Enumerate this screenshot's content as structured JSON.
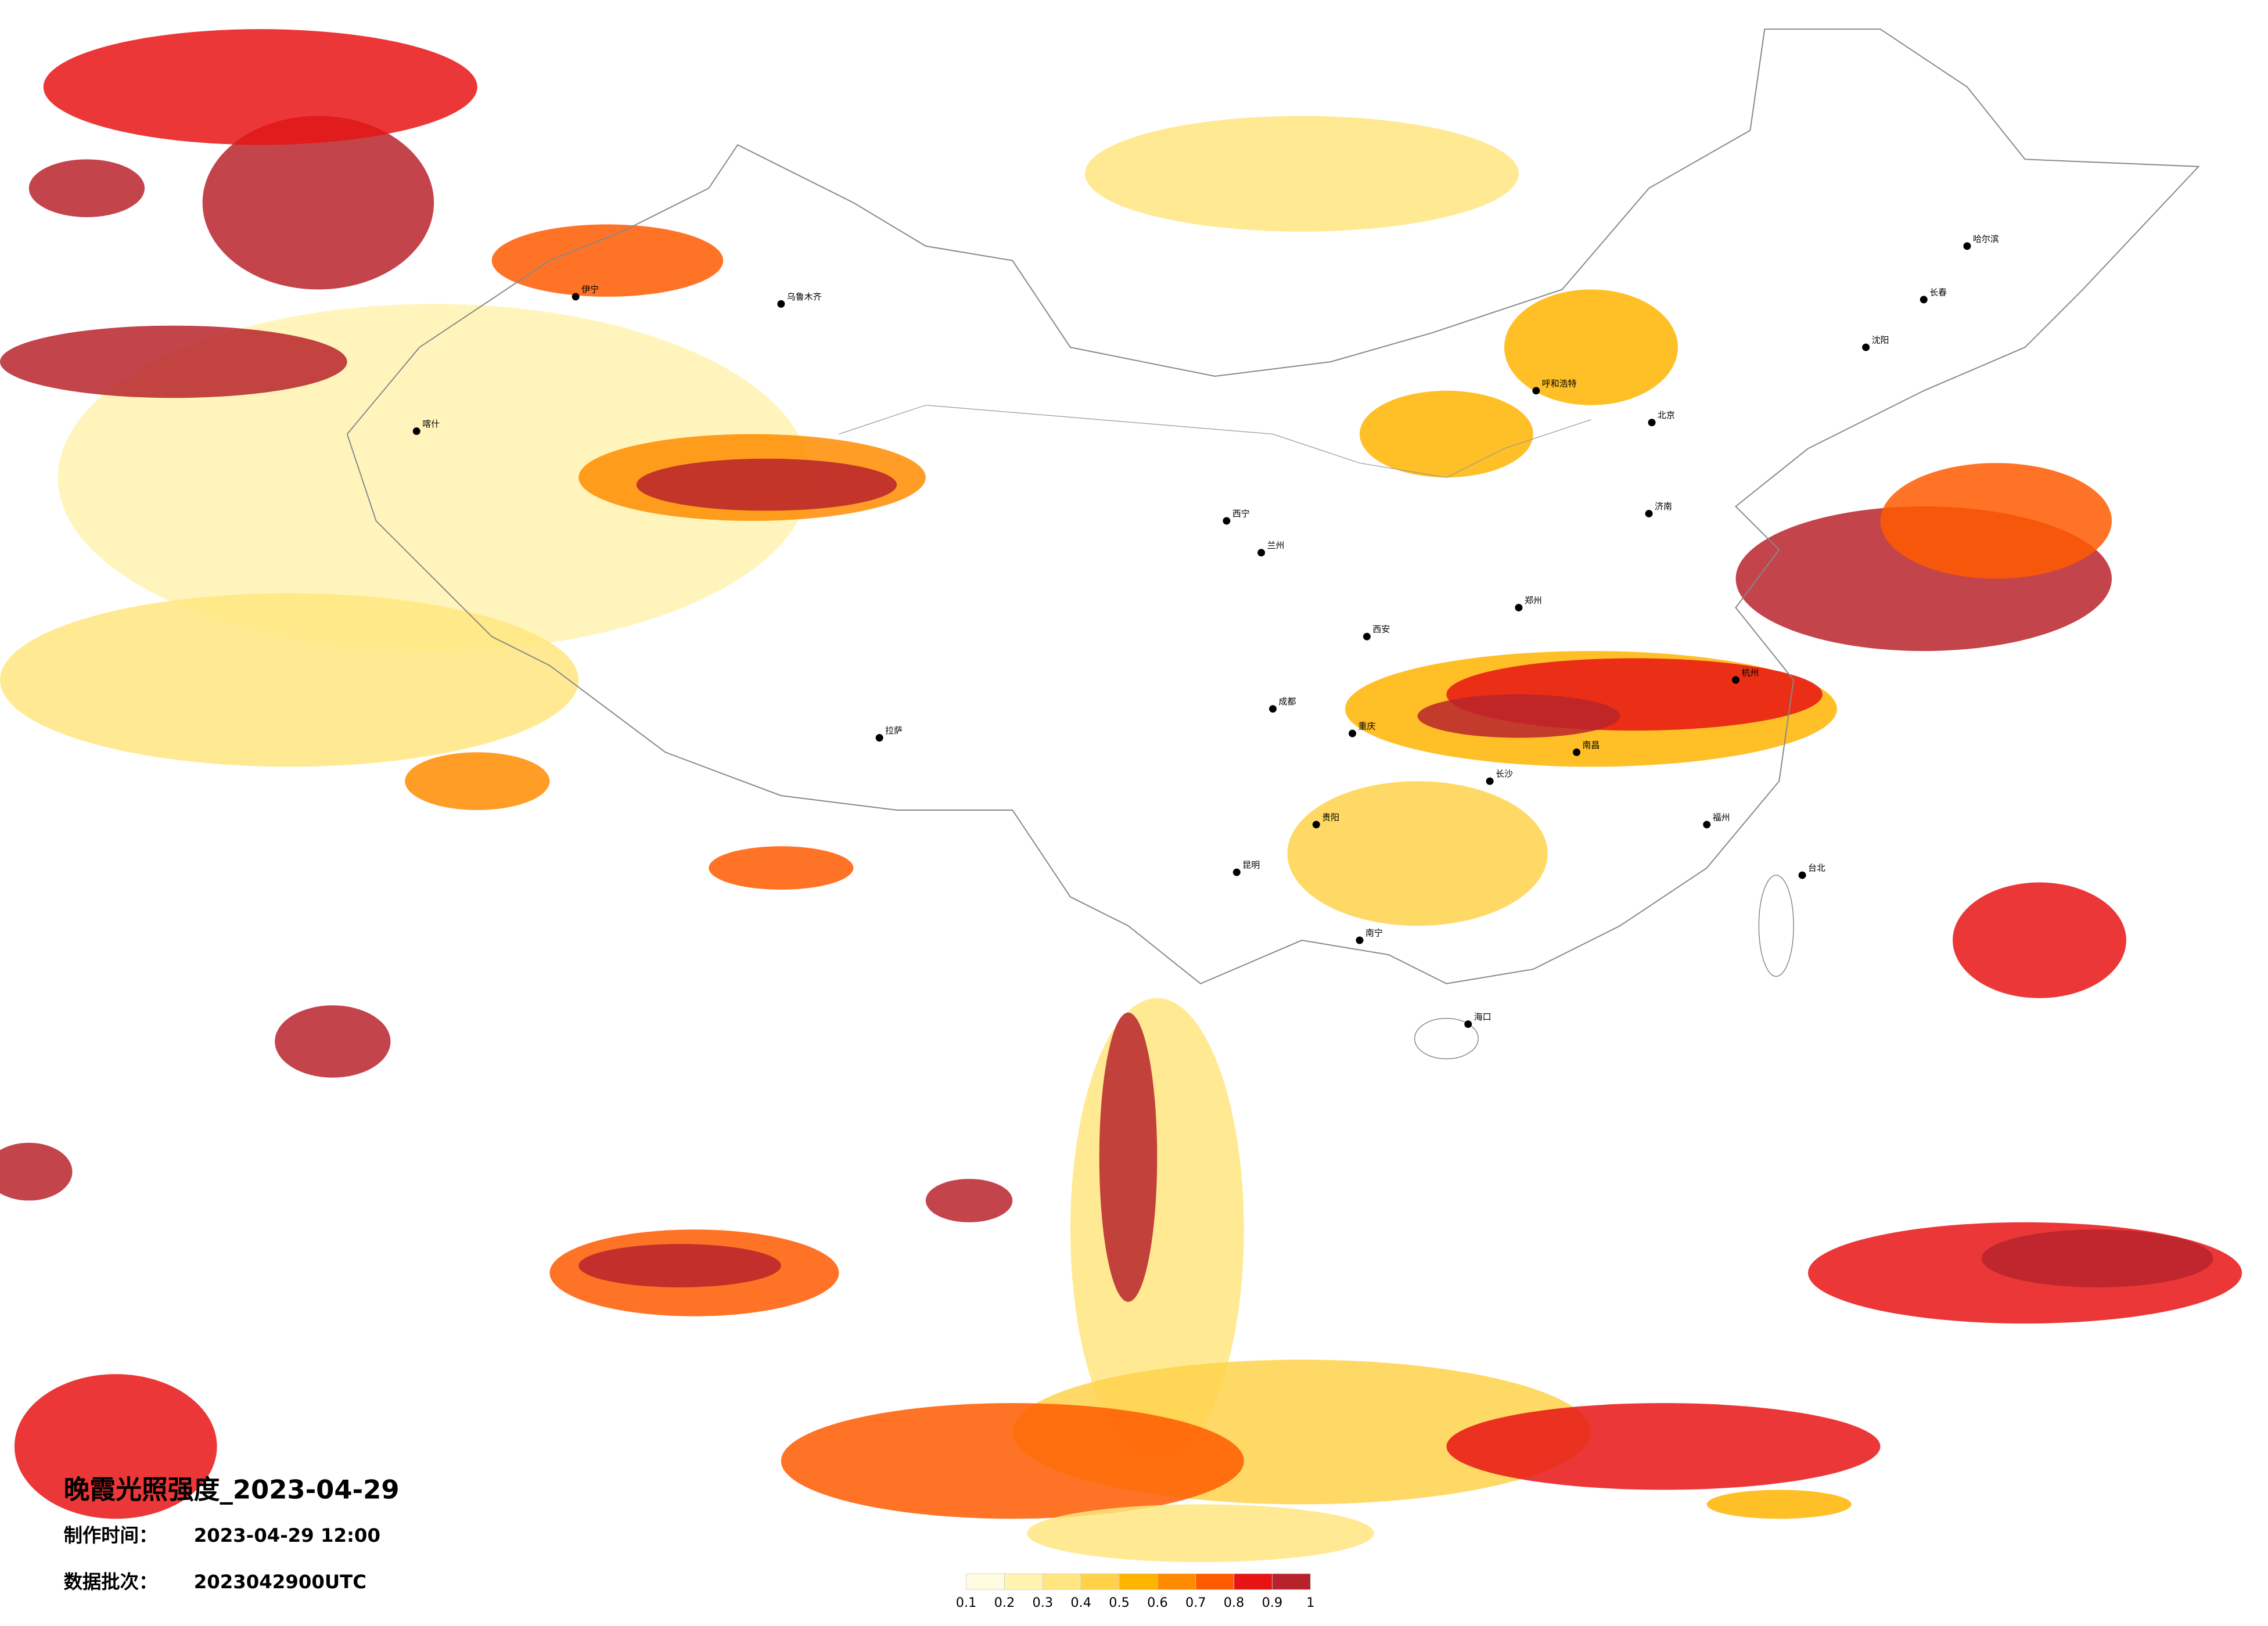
{
  "title": "晚霞光照强度_2023-04-29",
  "info": [
    {
      "label": "制作时间：",
      "value": "2023-04-29 12:00"
    },
    {
      "label": "数据批次：",
      "value": "2023042900UTC"
    }
  ],
  "legend": {
    "colors": [
      "#fffbe0",
      "#fff3b0",
      "#ffe680",
      "#ffd24a",
      "#ffb400",
      "#ff8c00",
      "#ff5a00",
      "#e81414",
      "#b8232b"
    ],
    "ticks": [
      0.1,
      0.2,
      0.3,
      0.4,
      0.5,
      0.6,
      0.7,
      0.8,
      0.9,
      1
    ]
  },
  "cities": [
    "乌鲁木齐",
    "伊宁",
    "喀什",
    "拉萨",
    "西宁",
    "兰州",
    "呼和浩特",
    "北京",
    "哈尔滨",
    "长春",
    "沈阳",
    "济南",
    "郑州",
    "西安",
    "成都",
    "重庆",
    "贵阳",
    "昆明",
    "南宁",
    "海口",
    "长沙",
    "南昌",
    "杭州",
    "台北",
    "福州"
  ]
}
